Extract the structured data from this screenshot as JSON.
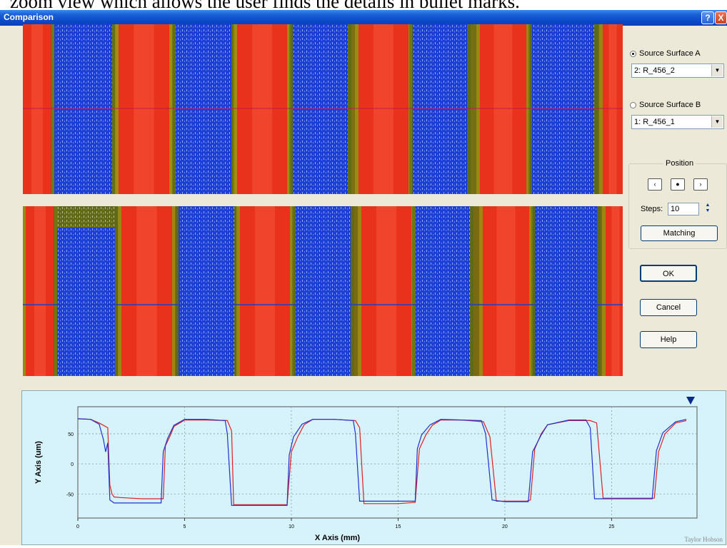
{
  "caption": "zoom view which allows the user finds the details in bullet marks.",
  "window": {
    "title": "Comparison",
    "help_label": "?",
    "close_label": "X"
  },
  "sources": {
    "a_label": "Source Surface A",
    "a_value": "2: R_456_2",
    "a_selected": true,
    "b_label": "Source Surface B",
    "b_value": "1: R_456_1",
    "b_selected": false
  },
  "position": {
    "legend": "Position",
    "left_button": "‹",
    "center_button": "●",
    "right_button": "›",
    "steps_label": "Steps:",
    "steps_value": "10",
    "matching_label": "Matching"
  },
  "buttons": {
    "ok": "OK",
    "cancel": "Cancel",
    "help": "Help"
  },
  "colors": {
    "surface_a_line": "#c2185b",
    "surface_b_line": "#1f3fbf",
    "trace_a": "#e02020",
    "trace_b": "#2030d0",
    "profile_bg": "#d6f3fb",
    "land_red": "#e8321c",
    "groove_blue": "#1c3fd6"
  },
  "chart_data": {
    "type": "line",
    "xlabel": "X Axis (mm)",
    "ylabel": "Y Axis (um)",
    "xticks": [
      "0",
      "5",
      "10",
      "15",
      "20",
      "25"
    ],
    "yticks": [
      "50",
      "0",
      "-50"
    ],
    "xlim": [
      0,
      29
    ],
    "ylim": [
      -90,
      95
    ],
    "grid": true,
    "marker_x": 28.7,
    "series": [
      {
        "x": [
          0,
          0.6,
          1.0,
          1.4,
          1.5,
          1.6,
          1.7,
          2.0,
          3.0,
          4.0,
          4.1,
          4.3,
          4.5,
          5.0,
          6.0,
          7.0,
          7.2,
          7.3,
          7.5,
          8.0,
          9.0,
          9.8,
          10.0,
          10.3,
          10.6,
          11.0,
          12.0,
          13.0,
          13.2,
          13.4,
          13.5,
          14.0,
          15.0,
          15.8,
          16.0,
          16.3,
          16.6,
          17.0,
          18.0,
          19.0,
          19.3,
          19.6,
          20.0,
          20.5,
          21.0,
          21.2,
          21.4,
          21.7,
          22.0,
          23.0,
          24.0,
          24.3,
          24.6,
          25.0,
          26.0,
          27.0,
          27.2,
          27.5,
          28.0,
          28.5
        ],
        "y": [
          75,
          74,
          68,
          60,
          -35,
          -50,
          -55,
          -56,
          -58,
          -58,
          30,
          45,
          62,
          73,
          73,
          72,
          55,
          -68,
          -68,
          -68,
          -68,
          -68,
          20,
          45,
          65,
          74,
          74,
          72,
          60,
          -66,
          -66,
          -66,
          -66,
          -64,
          25,
          48,
          64,
          73,
          73,
          70,
          45,
          -62,
          -62,
          -62,
          -62,
          -60,
          25,
          50,
          65,
          72,
          72,
          68,
          -57,
          -57,
          -57,
          -57,
          20,
          50,
          68,
          72
        ]
      },
      {
        "x": [
          0,
          0.6,
          1.0,
          1.2,
          1.3,
          1.4,
          1.5,
          1.7,
          2.0,
          3.0,
          3.9,
          4.0,
          4.2,
          4.5,
          5.0,
          6.0,
          6.9,
          7.0,
          7.2,
          8.0,
          9.0,
          9.8,
          9.9,
          10.1,
          10.5,
          11.0,
          12.0,
          12.9,
          13.0,
          13.2,
          14.0,
          15.0,
          15.8,
          15.9,
          16.1,
          16.5,
          17.0,
          18.0,
          18.9,
          19.1,
          19.4,
          20.0,
          20.5,
          21.0,
          21.1,
          21.3,
          21.7,
          22.0,
          23.0,
          23.8,
          24.0,
          24.2,
          25.0,
          26.0,
          26.9,
          27.1,
          27.4,
          28.0,
          28.5
        ],
        "y": [
          75,
          74,
          66,
          40,
          20,
          35,
          -60,
          -65,
          -65,
          -65,
          -65,
          20,
          42,
          64,
          74,
          74,
          72,
          50,
          -69,
          -69,
          -69,
          -69,
          15,
          45,
          66,
          74,
          74,
          72,
          50,
          -62,
          -62,
          -62,
          -62,
          25,
          48,
          65,
          74,
          73,
          72,
          50,
          -60,
          -63,
          -63,
          -63,
          -63,
          20,
          48,
          65,
          73,
          73,
          60,
          -58,
          -58,
          -58,
          -58,
          22,
          52,
          70,
          74
        ]
      }
    ]
  },
  "brand": "Taylor Hobson"
}
